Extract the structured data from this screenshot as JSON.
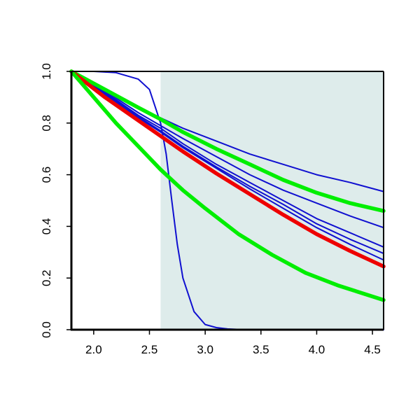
{
  "chart_data": {
    "type": "line",
    "title": "",
    "xlabel": "",
    "ylabel": "",
    "xlim": [
      1.8,
      4.6
    ],
    "ylim": [
      0.0,
      1.0
    ],
    "x_ticks": [
      2.0,
      2.5,
      3.0,
      3.5,
      4.0,
      4.5
    ],
    "x_tick_labels": [
      "2.0",
      "2.5",
      "3.0",
      "3.5",
      "4.0",
      "4.5"
    ],
    "y_ticks": [
      0.0,
      0.2,
      0.4,
      0.6,
      0.8,
      1.0
    ],
    "y_tick_labels": [
      "0.0",
      "0.2",
      "0.4",
      "0.6",
      "0.8",
      "1.0"
    ],
    "grid": false,
    "legend": "none",
    "shaded_region": {
      "x": [
        2.6,
        4.6
      ],
      "color": "#deeceb"
    },
    "series": [
      {
        "color": "#1010d0",
        "style": "thin",
        "x": [
          1.8,
          2.0,
          2.2,
          2.4,
          2.5,
          2.6,
          2.65,
          2.7,
          2.75,
          2.8,
          2.9,
          3.0,
          3.1,
          3.2,
          3.3,
          3.5,
          4.0,
          4.6
        ],
        "y": [
          1.0,
          1.0,
          0.995,
          0.97,
          0.93,
          0.8,
          0.68,
          0.5,
          0.33,
          0.2,
          0.07,
          0.02,
          0.008,
          0.003,
          0.001,
          0.0,
          0.0,
          0.0
        ]
      },
      {
        "color": "#1010d0",
        "style": "thin",
        "x": [
          1.8,
          2.1,
          2.4,
          2.6,
          2.8,
          3.1,
          3.4,
          3.7,
          4.0,
          4.3,
          4.6
        ],
        "y": [
          1.0,
          0.93,
          0.86,
          0.82,
          0.78,
          0.73,
          0.68,
          0.64,
          0.6,
          0.57,
          0.535
        ]
      },
      {
        "color": "#1010d0",
        "style": "thin",
        "x": [
          1.8,
          2.1,
          2.4,
          2.6,
          2.8,
          3.1,
          3.4,
          3.7,
          4.0,
          4.3,
          4.6
        ],
        "y": [
          1.0,
          0.925,
          0.84,
          0.79,
          0.74,
          0.67,
          0.6,
          0.54,
          0.49,
          0.44,
          0.395
        ]
      },
      {
        "color": "#1010d0",
        "style": "thin",
        "x": [
          1.8,
          2.1,
          2.4,
          2.6,
          2.8,
          3.1,
          3.4,
          3.7,
          4.0,
          4.3,
          4.6
        ],
        "y": [
          1.0,
          0.92,
          0.83,
          0.78,
          0.72,
          0.64,
          0.57,
          0.5,
          0.43,
          0.375,
          0.32
        ]
      },
      {
        "color": "#1010d0",
        "style": "thin",
        "x": [
          1.8,
          2.1,
          2.4,
          2.6,
          2.8,
          3.1,
          3.4,
          3.7,
          4.0,
          4.3,
          4.6
        ],
        "y": [
          1.0,
          0.915,
          0.825,
          0.77,
          0.71,
          0.63,
          0.555,
          0.485,
          0.41,
          0.35,
          0.295
        ]
      },
      {
        "color": "#1010d0",
        "style": "thin",
        "x": [
          1.8,
          2.1,
          2.4,
          2.6,
          2.8,
          3.1,
          3.4,
          3.7,
          4.0,
          4.3,
          4.6
        ],
        "y": [
          1.0,
          0.91,
          0.82,
          0.765,
          0.705,
          0.625,
          0.545,
          0.47,
          0.395,
          0.33,
          0.27
        ]
      },
      {
        "color": "#00ee00",
        "style": "thick",
        "x": [
          1.8,
          2.1,
          2.4,
          2.6,
          2.8,
          3.1,
          3.4,
          3.7,
          4.0,
          4.3,
          4.6
        ],
        "y": [
          1.0,
          0.93,
          0.86,
          0.815,
          0.765,
          0.7,
          0.64,
          0.58,
          0.53,
          0.49,
          0.46
        ]
      },
      {
        "color": "#ee0000",
        "style": "thick",
        "x": [
          1.8,
          2.1,
          2.4,
          2.6,
          2.8,
          3.1,
          3.4,
          3.7,
          4.0,
          4.3,
          4.6
        ],
        "y": [
          1.0,
          0.9,
          0.81,
          0.75,
          0.69,
          0.605,
          0.525,
          0.445,
          0.37,
          0.305,
          0.245
        ]
      },
      {
        "color": "#00ee00",
        "style": "thick",
        "x": [
          1.8,
          2.0,
          2.2,
          2.4,
          2.6,
          2.8,
          3.0,
          3.3,
          3.6,
          3.9,
          4.2,
          4.6
        ],
        "y": [
          1.0,
          0.9,
          0.8,
          0.71,
          0.62,
          0.54,
          0.47,
          0.37,
          0.29,
          0.22,
          0.17,
          0.115
        ]
      }
    ]
  }
}
